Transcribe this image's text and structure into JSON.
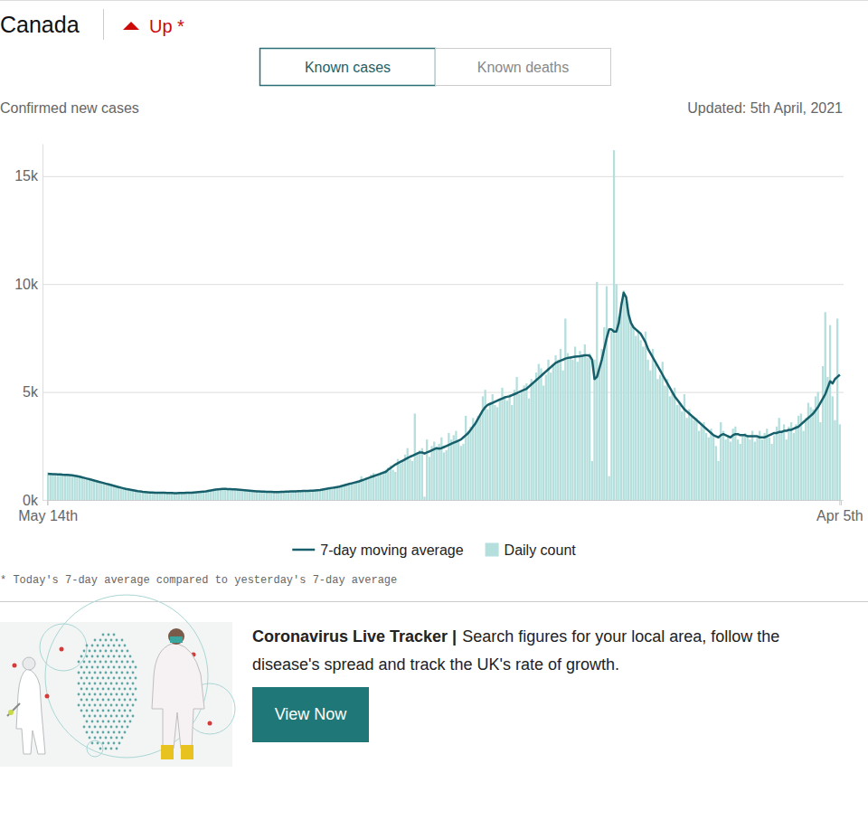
{
  "header": {
    "trend": "Up *",
    "tabs": [
      "Known cases",
      "Known deaths"
    ]
  },
  "chart_data": {
    "type": "bar",
    "title": "Canada",
    "ylabel": "Confirmed new cases",
    "subtitle": "Updated: 5th April, 2021",
    "footnote": "* Today's 7-day average compared to yesterday's 7-day average",
    "categories": [
      "May 14th",
      null,
      null,
      null,
      null,
      null,
      null,
      null,
      null,
      null,
      null,
      null,
      null,
      null,
      null,
      null,
      null,
      null,
      null,
      null,
      null,
      null,
      null,
      null,
      null,
      null,
      null,
      null,
      null,
      null,
      null,
      null,
      null,
      null,
      null,
      null,
      null,
      null,
      null,
      null,
      null,
      null,
      null,
      null,
      null,
      null,
      null,
      null,
      null,
      null,
      null,
      null,
      null,
      null,
      null,
      null,
      null,
      null,
      null,
      null,
      null,
      null,
      null,
      null,
      null,
      null,
      null,
      null,
      null,
      null,
      null,
      null,
      null,
      null,
      null,
      null,
      null,
      null,
      null,
      null,
      null,
      null,
      null,
      null,
      null,
      null,
      null,
      null,
      null,
      null,
      null,
      null,
      null,
      null,
      null,
      null,
      null,
      null,
      null,
      null,
      null,
      null,
      null,
      null,
      null,
      null,
      null,
      null,
      null,
      null,
      null,
      null,
      null,
      null,
      null,
      null,
      null,
      null,
      null,
      null,
      null,
      null,
      null,
      null,
      null,
      null,
      null,
      null,
      null,
      null,
      null,
      null,
      null,
      null,
      null,
      null,
      null,
      null,
      null,
      null,
      null,
      null,
      null,
      null,
      null,
      null,
      null,
      null,
      null,
      null,
      null,
      null,
      null,
      null,
      null,
      null,
      null,
      null,
      null,
      null,
      null,
      null,
      null,
      null,
      null,
      null,
      null,
      null,
      null,
      null,
      null,
      null,
      null,
      null,
      null,
      null,
      null,
      null,
      null,
      null,
      null,
      null,
      null,
      null,
      null,
      null,
      null,
      null,
      null,
      null,
      null,
      null,
      null,
      null,
      null,
      null,
      null,
      null,
      null,
      null,
      null,
      null,
      null,
      null,
      null,
      null,
      null,
      null,
      null,
      null,
      null,
      null,
      null,
      null,
      null,
      null,
      null,
      null,
      null,
      null,
      null,
      null,
      null,
      null,
      null,
      null,
      null,
      null,
      null,
      null,
      null,
      null,
      null,
      null,
      null,
      null,
      null,
      null,
      null,
      null,
      null,
      null,
      null,
      null,
      null,
      null,
      null,
      null,
      null,
      null,
      null,
      null,
      null,
      null,
      null,
      null,
      null,
      null,
      null,
      null,
      null,
      null,
      null,
      null,
      null,
      null,
      null,
      null,
      null,
      null,
      null,
      null,
      null,
      null,
      null,
      null,
      null,
      null,
      null,
      null,
      null,
      null,
      null,
      null,
      null,
      null,
      null,
      null,
      null,
      null,
      null,
      null,
      null,
      null,
      null,
      null,
      null,
      null,
      null,
      null,
      null,
      null,
      null,
      null,
      null,
      null,
      null,
      null,
      null,
      null,
      null,
      null,
      null,
      null,
      null,
      null,
      null,
      null,
      null,
      null,
      null,
      null,
      null,
      null,
      null,
      null,
      "Apr 5th"
    ],
    "series": [
      {
        "name": "7-day moving average",
        "type": "line",
        "color": "#17606b",
        "values": [
          1200,
          1200,
          1195,
          1190,
          1185,
          1180,
          1170,
          1165,
          1160,
          1150,
          1140,
          1120,
          1100,
          1080,
          1050,
          1020,
          990,
          960,
          930,
          900,
          870,
          840,
          810,
          780,
          750,
          720,
          690,
          660,
          630,
          600,
          570,
          540,
          510,
          490,
          470,
          450,
          430,
          410,
          395,
          380,
          370,
          360,
          350,
          345,
          340,
          335,
          330,
          330,
          330,
          325,
          320,
          320,
          315,
          315,
          320,
          320,
          325,
          330,
          335,
          340,
          350,
          360,
          370,
          380,
          390,
          400,
          420,
          440,
          460,
          480,
          490,
          500,
          510,
          510,
          505,
          500,
          495,
          490,
          480,
          470,
          460,
          450,
          440,
          430,
          420,
          410,
          400,
          395,
          390,
          385,
          380,
          380,
          375,
          370,
          370,
          370,
          375,
          380,
          385,
          390,
          395,
          400,
          400,
          405,
          410,
          415,
          420,
          420,
          425,
          430,
          440,
          450,
          460,
          480,
          500,
          520,
          540,
          560,
          580,
          600,
          620,
          650,
          680,
          710,
          740,
          770,
          800,
          830,
          860,
          900,
          940,
          980,
          1020,
          1060,
          1100,
          1140,
          1180,
          1220,
          1260,
          1300,
          1400,
          1480,
          1560,
          1640,
          1700,
          1760,
          1820,
          1880,
          1940,
          2000,
          2050,
          2100,
          2150,
          2200,
          2200,
          2150,
          2200,
          2250,
          2300,
          2350,
          2400,
          2380,
          2400,
          2450,
          2500,
          2550,
          2600,
          2650,
          2700,
          2750,
          2800,
          2900,
          3000,
          3100,
          3250,
          3400,
          3550,
          3750,
          3950,
          4150,
          4300,
          4400,
          4450,
          4500,
          4550,
          4600,
          4650,
          4700,
          4750,
          4780,
          4800,
          4850,
          4900,
          4950,
          5000,
          5050,
          5100,
          5150,
          5250,
          5350,
          5450,
          5550,
          5650,
          5750,
          5850,
          5950,
          6050,
          6150,
          6250,
          6350,
          6400,
          6450,
          6500,
          6550,
          6580,
          6600,
          6620,
          6640,
          6650,
          6660,
          6680,
          6700,
          6700,
          6680,
          6500,
          5600,
          5700,
          6100,
          6500,
          7000,
          7500,
          7900,
          7900,
          7800,
          7800,
          8200,
          9000,
          9600,
          9400,
          8600,
          8200,
          8000,
          7900,
          7800,
          7700,
          7500,
          7300,
          7000,
          6800,
          6600,
          6400,
          6200,
          6000,
          5800,
          5600,
          5400,
          5200,
          5000,
          4800,
          4650,
          4500,
          4350,
          4200,
          4100,
          4000,
          3900,
          3800,
          3700,
          3600,
          3500,
          3400,
          3300,
          3200,
          3100,
          3000,
          2950,
          2900,
          3000,
          3050,
          3000,
          2950,
          2900,
          3000,
          3050,
          3050,
          3000,
          3000,
          3000,
          2950,
          2950,
          2950,
          2950,
          2950,
          2900,
          2900,
          2900,
          2950,
          3000,
          3050,
          3100,
          3100,
          3150,
          3150,
          3200,
          3200,
          3250,
          3250,
          3300,
          3350,
          3400,
          3500,
          3600,
          3700,
          3800,
          3900,
          4000,
          4150,
          4300,
          4500,
          4700,
          4900,
          5200,
          5500,
          5400,
          5600,
          5700,
          5800
        ]
      },
      {
        "name": "Daily count",
        "type": "bar",
        "color": "#b4dfdc",
        "values": [
          1280,
          1240,
          1170,
          1150,
          1120,
          1230,
          1200,
          1190,
          1220,
          1130,
          1080,
          1090,
          1160,
          1110,
          1080,
          1020,
          950,
          920,
          900,
          910,
          870,
          880,
          800,
          760,
          720,
          700,
          680,
          650,
          640,
          580,
          560,
          530,
          500,
          500,
          460,
          420,
          440,
          400,
          420,
          380,
          360,
          340,
          380,
          350,
          330,
          340,
          310,
          320,
          340,
          300,
          320,
          290,
          330,
          300,
          310,
          340,
          330,
          320,
          350,
          330,
          370,
          380,
          350,
          400,
          380,
          420,
          480,
          440,
          470,
          500,
          520,
          480,
          540,
          560,
          490,
          520,
          470,
          500,
          460,
          420,
          400,
          470,
          440,
          450,
          410,
          430,
          380,
          400,
          420,
          360,
          390,
          410,
          350,
          380,
          360,
          400,
          380,
          360,
          390,
          420,
          370,
          410,
          430,
          400,
          380,
          440,
          400,
          450,
          420,
          460,
          430,
          460,
          440,
          500,
          510,
          480,
          560,
          580,
          550,
          630,
          640,
          600,
          700,
          720,
          680,
          780,
          820,
          780,
          850,
          1100,
          900,
          1050,
          980,
          1180,
          1250,
          1050,
          1240,
          1300,
          1350,
          1400,
          1500,
          1600,
          1400,
          1300,
          1900,
          1700,
          1800,
          2100,
          2400,
          1900,
          1800,
          4000,
          2200,
          2300,
          2400,
          150,
          2800,
          2000,
          2500,
          2700,
          2400,
          2600,
          2900,
          2200,
          2300,
          3100,
          2800,
          3000,
          3200,
          2700,
          2500,
          2600,
          3900,
          3200,
          3400,
          3800,
          3600,
          3900,
          4000,
          4800,
          5100,
          4200,
          4500,
          4900,
          4400,
          4300,
          4700,
          5200,
          4800,
          4600,
          4900,
          4400,
          5100,
          5700,
          4900,
          5000,
          5300,
          5400,
          4700,
          5600,
          5500,
          5900,
          6300,
          6100,
          5300,
          5800,
          6500,
          5900,
          6200,
          6700,
          6500,
          7000,
          6000,
          8400,
          6800,
          6600,
          6500,
          7100,
          6400,
          6900,
          6700,
          7200,
          6600,
          6800,
          1800,
          6500,
          10100,
          6100,
          7000,
          8000,
          9900,
          1100,
          7800,
          16200,
          10000,
          8500,
          9000,
          9700,
          9200,
          8800,
          8200,
          8000,
          7600,
          7800,
          7400,
          7100,
          7800,
          6500,
          6000,
          7000,
          6300,
          5600,
          5800,
          6400,
          5300,
          5600,
          4800,
          5000,
          5200,
          4400,
          4500,
          4100,
          4900,
          3800,
          4200,
          3900,
          3700,
          3800,
          3200,
          3500,
          3600,
          3100,
          2900,
          3300,
          3000,
          2500,
          1800,
          3600,
          3200,
          2800,
          3000,
          2700,
          3300,
          3400,
          2800,
          2600,
          3000,
          3100,
          2900,
          2800,
          3200,
          2700,
          2900,
          3200,
          2800,
          3100,
          3300,
          2900,
          2600,
          3000,
          3400,
          3800,
          3200,
          3500,
          2800,
          3400,
          3600,
          3100,
          3500,
          3900,
          4000,
          3200,
          3800,
          4500,
          4300,
          4200,
          4800,
          5000,
          3600,
          6200,
          8700,
          5700,
          8100,
          4800,
          3700,
          8400,
          3500
        ]
      }
    ],
    "ylim": [
      0,
      16500
    ],
    "yticks": [
      {
        "value": 0,
        "label": "0k"
      },
      {
        "value": 5000,
        "label": "5k"
      },
      {
        "value": 10000,
        "label": "10k"
      },
      {
        "value": 15000,
        "label": "15k"
      }
    ],
    "grid": true,
    "legend": "bottom"
  },
  "promo": {
    "title": "Coronavirus Live Tracker |",
    "text": "Search figures for your local area, follow the disease's spread and track the UK's rate of growth.",
    "button": "View Now"
  }
}
